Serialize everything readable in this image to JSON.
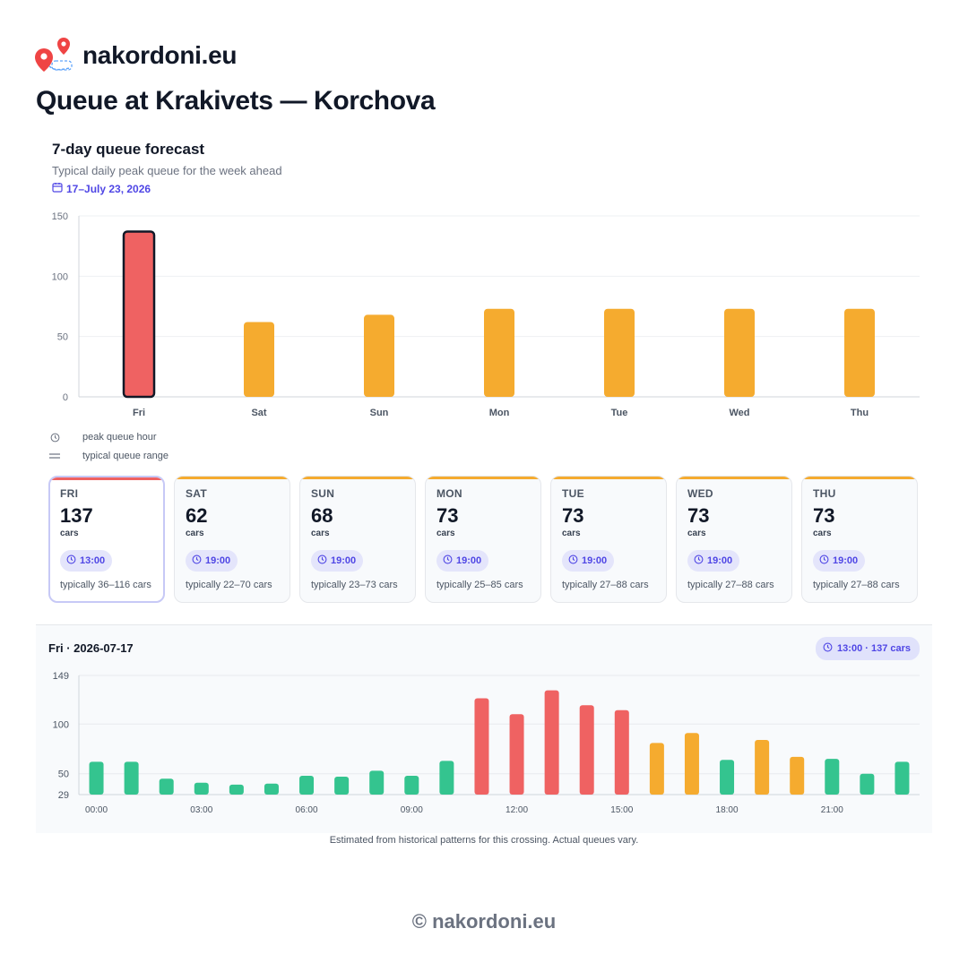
{
  "brand": {
    "name": "nakordoni.eu"
  },
  "page": {
    "title": "Queue at Krakivets — Korchova"
  },
  "forecast": {
    "title": "7-day queue forecast",
    "subtitle": "Typical daily peak queue for the week ahead",
    "date_range": "17–July 23, 2026"
  },
  "legend": {
    "peak_hour": "peak queue hour",
    "range": "typical queue range"
  },
  "colors": {
    "red": "#ef6262",
    "orange": "#f5ab2f",
    "green": "#34c48f",
    "accent": "#4f46e5"
  },
  "days": [
    {
      "name": "FRI",
      "value": "137",
      "unit": "cars",
      "peak": "13:00",
      "range": "typically 36–116 cars",
      "selected": true,
      "level": "red"
    },
    {
      "name": "SAT",
      "value": "62",
      "unit": "cars",
      "peak": "19:00",
      "range": "typically 22–70 cars",
      "selected": false,
      "level": "orange"
    },
    {
      "name": "SUN",
      "value": "68",
      "unit": "cars",
      "peak": "19:00",
      "range": "typically 23–73 cars",
      "selected": false,
      "level": "orange"
    },
    {
      "name": "MON",
      "value": "73",
      "unit": "cars",
      "peak": "19:00",
      "range": "typically 25–85 cars",
      "selected": false,
      "level": "orange"
    },
    {
      "name": "TUE",
      "value": "73",
      "unit": "cars",
      "peak": "19:00",
      "range": "typically 27–88 cars",
      "selected": false,
      "level": "orange"
    },
    {
      "name": "WED",
      "value": "73",
      "unit": "cars",
      "peak": "19:00",
      "range": "typically 27–88 cars",
      "selected": false,
      "level": "orange"
    },
    {
      "name": "THU",
      "value": "73",
      "unit": "cars",
      "peak": "19:00",
      "range": "typically 27–88 cars",
      "selected": false,
      "level": "orange"
    }
  ],
  "detail": {
    "title": "Fri · 2026-07-17",
    "badge": "13:00 · 137 cars"
  },
  "note": "Estimated from historical patterns for this crossing. Actual queues vary.",
  "footer": "© nakordoni.eu",
  "chart_data": [
    {
      "type": "bar",
      "categories": [
        "Fri",
        "Sat",
        "Sun",
        "Mon",
        "Tue",
        "Wed",
        "Thu"
      ],
      "values": [
        137,
        62,
        68,
        73,
        73,
        73,
        73
      ],
      "levels": [
        "red",
        "orange",
        "orange",
        "orange",
        "orange",
        "orange",
        "orange"
      ],
      "highlighted": "Fri",
      "yticks": [
        0,
        50,
        100,
        150
      ],
      "ylim": [
        0,
        150
      ],
      "grid": true
    },
    {
      "type": "bar",
      "x": [
        "00:00",
        "01:00",
        "02:00",
        "03:00",
        "04:00",
        "05:00",
        "06:00",
        "07:00",
        "08:00",
        "09:00",
        "10:00",
        "11:00",
        "12:00",
        "13:00",
        "14:00",
        "15:00",
        "16:00",
        "17:00",
        "18:00",
        "19:00",
        "20:00",
        "21:00",
        "22:00",
        "23:00"
      ],
      "values": [
        62,
        62,
        45,
        41,
        39,
        40,
        48,
        47,
        53,
        48,
        63,
        126,
        110,
        134,
        119,
        114,
        81,
        91,
        64,
        84,
        67,
        65,
        50,
        62
      ],
      "levels": [
        "green",
        "green",
        "green",
        "green",
        "green",
        "green",
        "green",
        "green",
        "green",
        "green",
        "green",
        "red",
        "red",
        "red",
        "red",
        "red",
        "orange",
        "orange",
        "green",
        "orange",
        "orange",
        "green",
        "green",
        "green"
      ],
      "xtick_labels": [
        "00:00",
        "03:00",
        "06:00",
        "09:00",
        "12:00",
        "15:00",
        "18:00",
        "21:00"
      ],
      "yticks": [
        29,
        50,
        100,
        149
      ],
      "ylim": [
        29,
        149
      ],
      "grid": true
    }
  ]
}
